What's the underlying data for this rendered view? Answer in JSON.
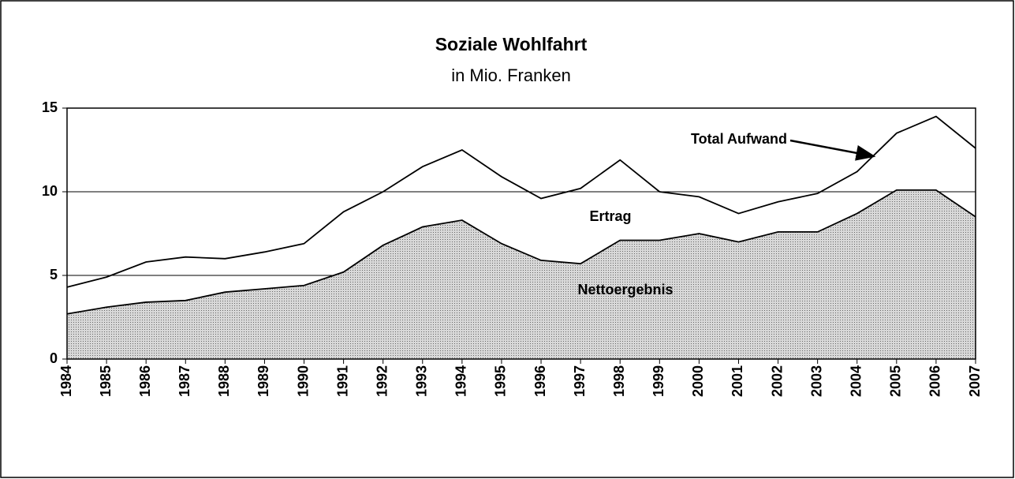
{
  "chart_data": {
    "type": "area",
    "title": "Soziale Wohlfahrt",
    "subtitle": "in Mio. Franken",
    "categories": [
      "1984",
      "1985",
      "1986",
      "1987",
      "1988",
      "1989",
      "1990",
      "1991",
      "1992",
      "1993",
      "1994",
      "1995",
      "1996",
      "1997",
      "1998",
      "1999",
      "2000",
      "2001",
      "2002",
      "2003",
      "2004",
      "2005",
      "2006",
      "2007"
    ],
    "series": [
      {
        "name": "Total Aufwand",
        "color": "#000000",
        "filled": false,
        "values": [
          4.3,
          4.9,
          5.8,
          6.1,
          6.0,
          6.4,
          6.9,
          8.8,
          10.0,
          11.5,
          12.5,
          10.9,
          9.6,
          10.2,
          11.9,
          10.0,
          9.7,
          8.7,
          9.4,
          9.9,
          11.2,
          13.5,
          14.5,
          12.6
        ]
      },
      {
        "name": "Nettoergebnis",
        "color": "#c4c4c4",
        "filled": true,
        "values": [
          2.7,
          3.1,
          3.4,
          3.5,
          4.0,
          4.2,
          4.4,
          5.2,
          6.8,
          7.9,
          8.3,
          6.9,
          5.9,
          5.7,
          7.1,
          7.1,
          7.5,
          7.0,
          7.6,
          7.6,
          8.7,
          10.1,
          10.1,
          8.5
        ]
      }
    ],
    "annotations": [
      "Total Aufwand",
      "Ertrag",
      "Nettoergebnis"
    ],
    "ylim": [
      0,
      15
    ],
    "yticks": [
      0,
      5,
      10,
      15
    ],
    "grid": true
  }
}
